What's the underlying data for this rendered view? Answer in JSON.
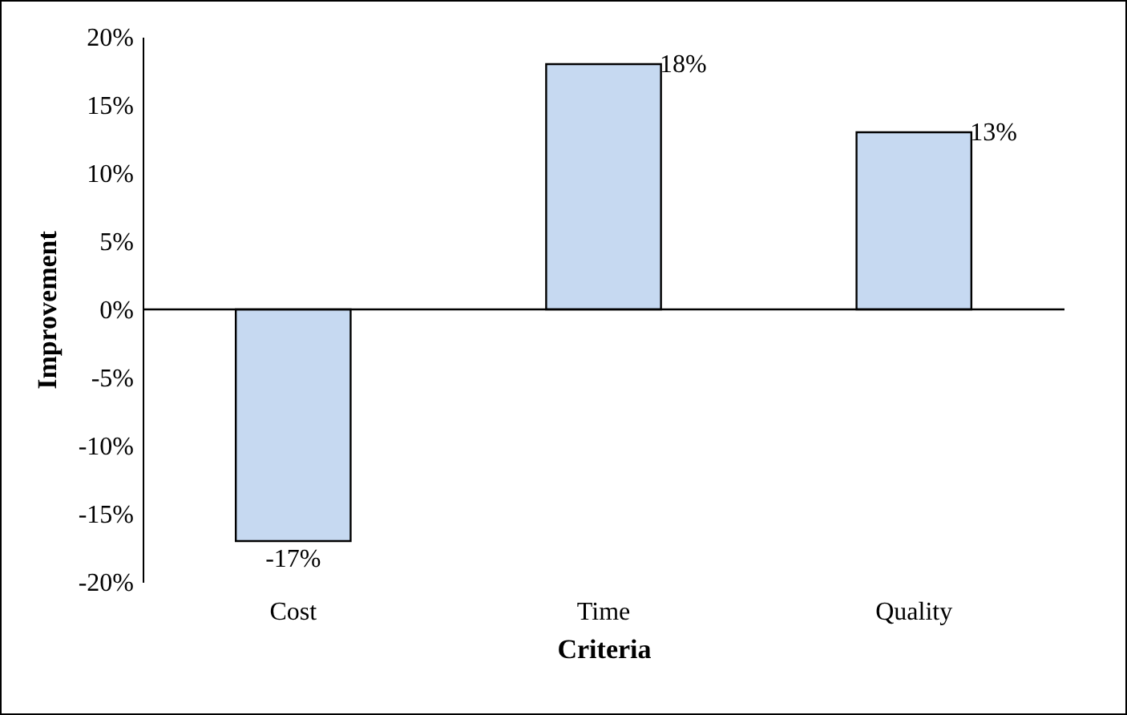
{
  "chart_data": {
    "type": "bar",
    "xlabel": "Criteria",
    "ylabel": "Improvement",
    "categories": [
      "Cost",
      "Time",
      "Quality"
    ],
    "values": [
      -17,
      18,
      13
    ],
    "value_labels": [
      "-17%",
      "18%",
      "13%"
    ],
    "color": "#c6d9f1",
    "ylim": [
      -20,
      20
    ],
    "yticks": [
      {
        "value": -20,
        "label": "-20%"
      },
      {
        "value": -15,
        "label": "-15%"
      },
      {
        "value": -10,
        "label": "-10%"
      },
      {
        "value": -5,
        "label": "-5%"
      },
      {
        "value": 0,
        "label": "0%"
      },
      {
        "value": 5,
        "label": "5%"
      },
      {
        "value": 10,
        "label": "10%"
      },
      {
        "value": 15,
        "label": "15%"
      },
      {
        "value": 20,
        "label": "20%"
      }
    ],
    "ref_lines": [
      {
        "axis": "y",
        "value": 0,
        "color": "#000000"
      }
    ],
    "grid": false
  }
}
